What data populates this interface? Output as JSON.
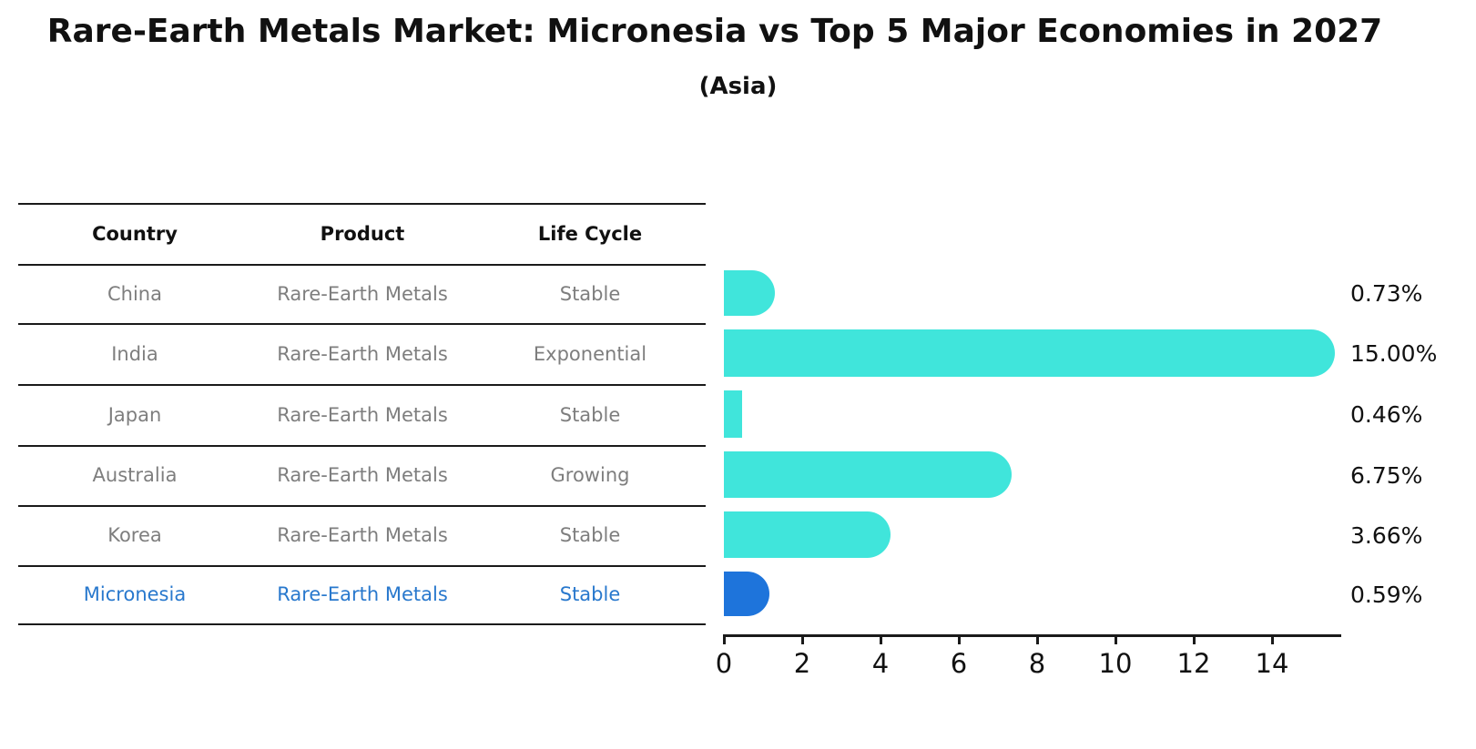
{
  "title": "Rare-Earth Metals Market: Micronesia vs Top 5 Major Economies in 2027",
  "subtitle": "(Asia)",
  "table": {
    "headers": [
      "Country",
      "Product",
      "Life Cycle"
    ],
    "rows": [
      {
        "country": "China",
        "product": "Rare-Earth Metals",
        "life_cycle": "Stable",
        "highlighted": false
      },
      {
        "country": "India",
        "product": "Rare-Earth Metals",
        "life_cycle": "Exponential",
        "highlighted": false
      },
      {
        "country": "Japan",
        "product": "Rare-Earth Metals",
        "life_cycle": "Stable",
        "highlighted": false
      },
      {
        "country": "Australia",
        "product": "Rare-Earth Metals",
        "life_cycle": "Growing",
        "highlighted": false
      },
      {
        "country": "Korea",
        "product": "Rare-Earth Metals",
        "life_cycle": "Stable",
        "highlighted": false
      },
      {
        "country": "Micronesia",
        "product": "Rare-Earth Metals",
        "life_cycle": "Stable",
        "highlighted": true
      }
    ]
  },
  "chart_data": {
    "type": "bar",
    "orientation": "horizontal",
    "categories": [
      "China",
      "India",
      "Japan",
      "Australia",
      "Korea",
      "Micronesia"
    ],
    "values": [
      0.73,
      15.0,
      0.46,
      6.75,
      3.66,
      0.59
    ],
    "value_labels": [
      "0.73%",
      "15.00%",
      "0.46%",
      "6.75%",
      "3.66%",
      "0.59%"
    ],
    "x_ticks": [
      0,
      2,
      4,
      6,
      8,
      10,
      12,
      14
    ],
    "xlim": [
      0,
      15.75
    ],
    "grid": false,
    "legend": false,
    "bar_color": "#40E5DB",
    "highlight_color": "#1E74DB",
    "highlight_index": 5,
    "highlight_text_color": "#2878CD",
    "axis_color": "#1a1a1a",
    "row_text_color": "#7e7e7e",
    "header_text_color": "#111111"
  }
}
